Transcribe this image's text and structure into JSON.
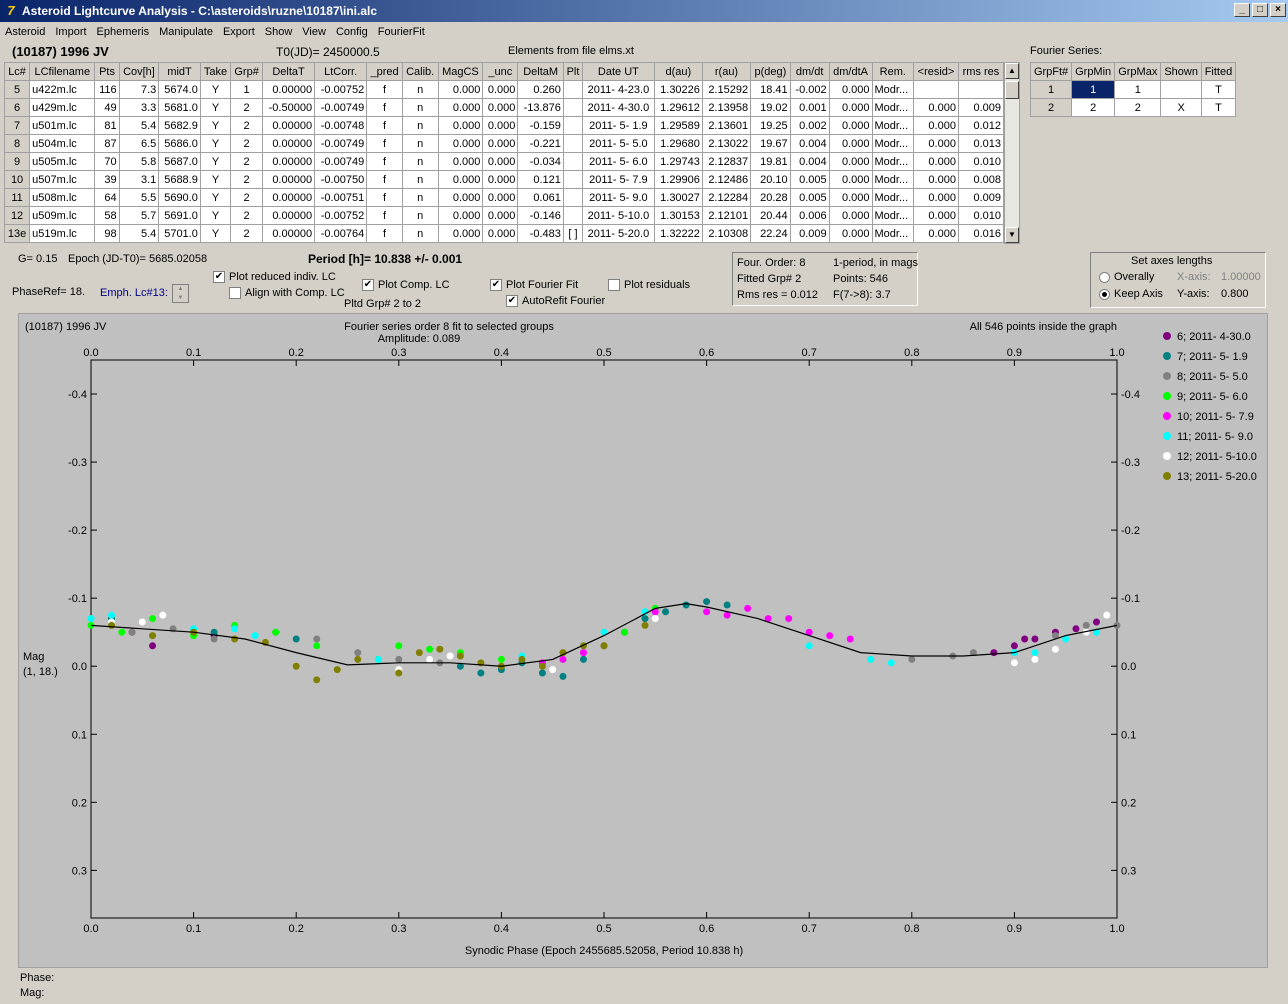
{
  "window": {
    "title": "Asteroid Lightcurve Analysis - C:\\asteroids\\ruzne\\10187\\ini.alc",
    "min": "_",
    "max": "□",
    "close": "×"
  },
  "menu": [
    "Asteroid",
    "Import",
    "Ephemeris",
    "Manipulate",
    "Export",
    "Show",
    "View",
    "Config",
    "FourierFit"
  ],
  "header": {
    "asteroid": "(10187) 1996 JV",
    "t0": "T0(JD)= 2450000.5",
    "elements": "Elements from file elms.xt",
    "fourier_series": "Fourier Series:"
  },
  "lc_table": {
    "columns": [
      "Lc#",
      "LCfilename",
      "Pts",
      "Cov[h]",
      "midT",
      "Take",
      "Grp#",
      "DeltaT",
      "LtCorr.",
      "_pred",
      "Calib.",
      "MagCS",
      "_unc",
      "DeltaM",
      "Plt",
      "Date UT",
      "d(au)",
      "r(au)",
      "p(deg)",
      "dm/dt",
      "dm/dtA",
      "Rem.",
      "<resid>",
      "rms res"
    ],
    "rows": [
      [
        "5",
        "u422m.lc",
        "116",
        "7.3",
        "5674.0",
        "Y",
        "1",
        "0.00000",
        "-0.00752",
        "f",
        "n",
        "0.000",
        "0.000",
        "0.260",
        "",
        "2011- 4-23.0",
        "1.30226",
        "2.15292",
        "18.41",
        "-0.002",
        "0.000",
        "Modr...",
        "",
        ""
      ],
      [
        "6",
        "u429m.lc",
        "49",
        "3.3",
        "5681.0",
        "Y",
        "2",
        "-0.50000",
        "-0.00749",
        "f",
        "n",
        "0.000",
        "0.000",
        "-13.876",
        "",
        "2011- 4-30.0",
        "1.29612",
        "2.13958",
        "19.02",
        "0.001",
        "0.000",
        "Modr...",
        "0.000",
        "0.009"
      ],
      [
        "7",
        "u501m.lc",
        "81",
        "5.4",
        "5682.9",
        "Y",
        "2",
        "0.00000",
        "-0.00748",
        "f",
        "n",
        "0.000",
        "0.000",
        "-0.159",
        "",
        "2011- 5- 1.9",
        "1.29589",
        "2.13601",
        "19.25",
        "0.002",
        "0.000",
        "Modr...",
        "0.000",
        "0.012"
      ],
      [
        "8",
        "u504m.lc",
        "87",
        "6.5",
        "5686.0",
        "Y",
        "2",
        "0.00000",
        "-0.00749",
        "f",
        "n",
        "0.000",
        "0.000",
        "-0.221",
        "",
        "2011- 5- 5.0",
        "1.29680",
        "2.13022",
        "19.67",
        "0.004",
        "0.000",
        "Modr...",
        "0.000",
        "0.013"
      ],
      [
        "9",
        "u505m.lc",
        "70",
        "5.8",
        "5687.0",
        "Y",
        "2",
        "0.00000",
        "-0.00749",
        "f",
        "n",
        "0.000",
        "0.000",
        "-0.034",
        "",
        "2011- 5- 6.0",
        "1.29743",
        "2.12837",
        "19.81",
        "0.004",
        "0.000",
        "Modr...",
        "0.000",
        "0.010"
      ],
      [
        "10",
        "u507m.lc",
        "39",
        "3.1",
        "5688.9",
        "Y",
        "2",
        "0.00000",
        "-0.00750",
        "f",
        "n",
        "0.000",
        "0.000",
        "0.121",
        "",
        "2011- 5- 7.9",
        "1.29906",
        "2.12486",
        "20.10",
        "0.005",
        "0.000",
        "Modr...",
        "0.000",
        "0.008"
      ],
      [
        "11",
        "u508m.lc",
        "64",
        "5.5",
        "5690.0",
        "Y",
        "2",
        "0.00000",
        "-0.00751",
        "f",
        "n",
        "0.000",
        "0.000",
        "0.061",
        "",
        "2011- 5- 9.0",
        "1.30027",
        "2.12284",
        "20.28",
        "0.005",
        "0.000",
        "Modr...",
        "0.000",
        "0.009"
      ],
      [
        "12",
        "u509m.lc",
        "58",
        "5.7",
        "5691.0",
        "Y",
        "2",
        "0.00000",
        "-0.00752",
        "f",
        "n",
        "0.000",
        "0.000",
        "-0.146",
        "",
        "2011- 5-10.0",
        "1.30153",
        "2.12101",
        "20.44",
        "0.006",
        "0.000",
        "Modr...",
        "0.000",
        "0.010"
      ],
      [
        "13e",
        "u519m.lc",
        "98",
        "5.4",
        "5701.0",
        "Y",
        "2",
        "0.00000",
        "-0.00764",
        "f",
        "n",
        "0.000",
        "0.000",
        "-0.483",
        "[ ]",
        "2011- 5-20.0",
        "1.32222",
        "2.10308",
        "22.24",
        "0.009",
        "0.000",
        "Modr...",
        "0.000",
        "0.016"
      ]
    ]
  },
  "fourier_table": {
    "columns": [
      "GrpFt#",
      "GrpMin",
      "GrpMax",
      "Shown",
      "Fitted"
    ],
    "rows": [
      [
        "1",
        "1",
        "1",
        "",
        "T"
      ],
      [
        "2",
        "2",
        "2",
        "X",
        "T"
      ]
    ]
  },
  "controls": {
    "g": "G= 0.15",
    "epoch": "Epoch (JD-T0)= 5685.02058",
    "period": "Period [h]= 10.838 +/- 0.001",
    "phase_ref": "PhaseRef= 18.",
    "emph": "Emph. Lc#13:",
    "plot_reduced": "Plot reduced indiv. LC",
    "align": "Align with Comp. LC",
    "plot_comp": "Plot Comp. LC",
    "pltd": "Pltd Grp#  2   to   2",
    "plot_fourier": "Plot Fourier Fit",
    "autorefit": "AutoRefit Fourier",
    "plot_residuals": "Plot residuals",
    "check": "✔"
  },
  "info": {
    "order": "Four. Order:  8",
    "fitted": "Fitted Grp# 2",
    "rms": "Rms res     = 0.012",
    "mode": "1-period, in mags",
    "points": "Points: 546",
    "f": "F(7->8):   3.7"
  },
  "axes": {
    "title": "Set axes lengths",
    "overall": "Overally",
    "keep": "Keep Axis",
    "xlabel": "X-axis:",
    "xval": "1.00000",
    "ylabel": "Y-axis:",
    "yval": "0.800"
  },
  "chart_data": {
    "type": "scatter",
    "title_left": "(10187) 1996 JV",
    "title": "Fourier series order 8 fit to selected groups",
    "subtitle": "Amplitude: 0.089",
    "note": "All 546 points inside the graph",
    "xlabel": "Synodic Phase (Epoch 2455685.52058, Period 10.838 h)",
    "ylabel": "Mag",
    "ylabel2": "(1, 18.)",
    "xlim": [
      0,
      1.0
    ],
    "ylim": [
      -0.45,
      0.37
    ],
    "y_inverted": true,
    "x_ticks": [
      "0.0",
      "0.1",
      "0.2",
      "0.3",
      "0.4",
      "0.5",
      "0.6",
      "0.7",
      "0.8",
      "0.9",
      "1.0"
    ],
    "y_ticks": [
      "-0.4",
      "-0.3",
      "-0.2",
      "-0.1",
      "0.0",
      "0.1",
      "0.2",
      "0.3"
    ],
    "fourier_fit": {
      "x": [
        0,
        0.05,
        0.1,
        0.15,
        0.2,
        0.25,
        0.3,
        0.35,
        0.4,
        0.45,
        0.5,
        0.55,
        0.58,
        0.6,
        0.65,
        0.7,
        0.75,
        0.8,
        0.85,
        0.9,
        0.95,
        1.0
      ],
      "y": [
        -0.06,
        -0.055,
        -0.05,
        -0.04,
        -0.02,
        -0.002,
        -0.005,
        -0.005,
        0.0,
        -0.01,
        -0.045,
        -0.085,
        -0.092,
        -0.087,
        -0.07,
        -0.045,
        -0.02,
        -0.015,
        -0.015,
        -0.02,
        -0.045,
        -0.06
      ]
    },
    "series": [
      {
        "name": "6; 2011- 4-30.0",
        "color": "#800080",
        "x": [
          0.88,
          0.9,
          0.92,
          0.94,
          0.96,
          0.98,
          0.04,
          0.06,
          0.12,
          0.91
        ],
        "y": [
          -0.02,
          -0.03,
          -0.04,
          -0.05,
          -0.055,
          -0.065,
          -0.05,
          -0.03,
          -0.045,
          -0.04
        ]
      },
      {
        "name": "7; 2011- 5- 1.9",
        "color": "#008080",
        "x": [
          0.36,
          0.38,
          0.4,
          0.42,
          0.44,
          0.46,
          0.48,
          0.52,
          0.54,
          0.56,
          0.58,
          0.6,
          0.62,
          0.12,
          0.2,
          0.02
        ],
        "y": [
          0.0,
          0.01,
          0.005,
          -0.005,
          0.01,
          0.015,
          -0.01,
          -0.05,
          -0.07,
          -0.08,
          -0.09,
          -0.095,
          -0.09,
          -0.05,
          -0.04,
          -0.07
        ]
      },
      {
        "name": "8; 2011- 5- 5.0",
        "color": "#808080",
        "x": [
          0.02,
          0.04,
          0.08,
          0.12,
          0.18,
          0.22,
          0.26,
          0.3,
          0.34,
          0.76,
          0.8,
          0.84,
          0.86,
          0.9,
          0.94,
          0.97,
          1.0
        ],
        "y": [
          -0.06,
          -0.05,
          -0.055,
          -0.04,
          -0.05,
          -0.04,
          -0.02,
          -0.01,
          -0.005,
          -0.01,
          -0.01,
          -0.015,
          -0.02,
          -0.02,
          -0.045,
          -0.06,
          -0.06
        ]
      },
      {
        "name": "9; 2011- 5- 6.0",
        "color": "#00ff00",
        "x": [
          0.0,
          0.03,
          0.06,
          0.1,
          0.14,
          0.18,
          0.22,
          0.28,
          0.3,
          0.33,
          0.36,
          0.4,
          0.46,
          0.5,
          0.52,
          0.55
        ],
        "y": [
          -0.06,
          -0.05,
          -0.07,
          -0.045,
          -0.06,
          -0.05,
          -0.03,
          -0.01,
          -0.03,
          -0.025,
          -0.02,
          -0.01,
          -0.01,
          -0.03,
          -0.05,
          -0.085
        ]
      },
      {
        "name": "10; 2011- 5- 7.9",
        "color": "#ff00ff",
        "x": [
          0.44,
          0.46,
          0.48,
          0.5,
          0.55,
          0.6,
          0.62,
          0.64,
          0.66,
          0.68,
          0.7,
          0.72,
          0.74
        ],
        "y": [
          -0.005,
          -0.01,
          -0.02,
          -0.03,
          -0.08,
          -0.08,
          -0.075,
          -0.085,
          -0.07,
          -0.07,
          -0.05,
          -0.045,
          -0.04
        ]
      },
      {
        "name": "11; 2011- 5- 9.0",
        "color": "#00ffff",
        "x": [
          0.0,
          0.02,
          0.1,
          0.14,
          0.16,
          0.28,
          0.42,
          0.5,
          0.54,
          0.7,
          0.76,
          0.78,
          0.9,
          0.92,
          0.95,
          0.98
        ],
        "y": [
          -0.07,
          -0.075,
          -0.055,
          -0.055,
          -0.045,
          -0.01,
          -0.015,
          -0.05,
          -0.08,
          -0.03,
          -0.01,
          -0.005,
          -0.02,
          -0.02,
          -0.04,
          -0.05
        ]
      },
      {
        "name": "12; 2011- 5-10.0",
        "color": "#ffffff",
        "x": [
          0.02,
          0.05,
          0.07,
          0.3,
          0.33,
          0.35,
          0.45,
          0.55,
          0.9,
          0.92,
          0.94,
          0.97,
          0.99
        ],
        "y": [
          -0.065,
          -0.065,
          -0.075,
          0.005,
          -0.01,
          -0.015,
          0.005,
          -0.07,
          -0.005,
          -0.01,
          -0.025,
          -0.05,
          -0.075
        ]
      },
      {
        "name": "13; 2011- 5-20.0",
        "color": "#808000",
        "x": [
          0.02,
          0.06,
          0.1,
          0.14,
          0.17,
          0.2,
          0.22,
          0.24,
          0.26,
          0.3,
          0.32,
          0.34,
          0.36,
          0.38,
          0.4,
          0.42,
          0.44,
          0.46,
          0.48,
          0.5,
          0.54
        ],
        "y": [
          -0.06,
          -0.045,
          -0.05,
          -0.04,
          -0.035,
          0.0,
          0.02,
          0.005,
          -0.01,
          0.01,
          -0.02,
          -0.025,
          -0.015,
          -0.005,
          0.0,
          -0.01,
          0.0,
          -0.02,
          -0.03,
          -0.03,
          -0.06
        ]
      }
    ]
  },
  "status": {
    "phase": "Phase:",
    "mag": "Mag:"
  }
}
